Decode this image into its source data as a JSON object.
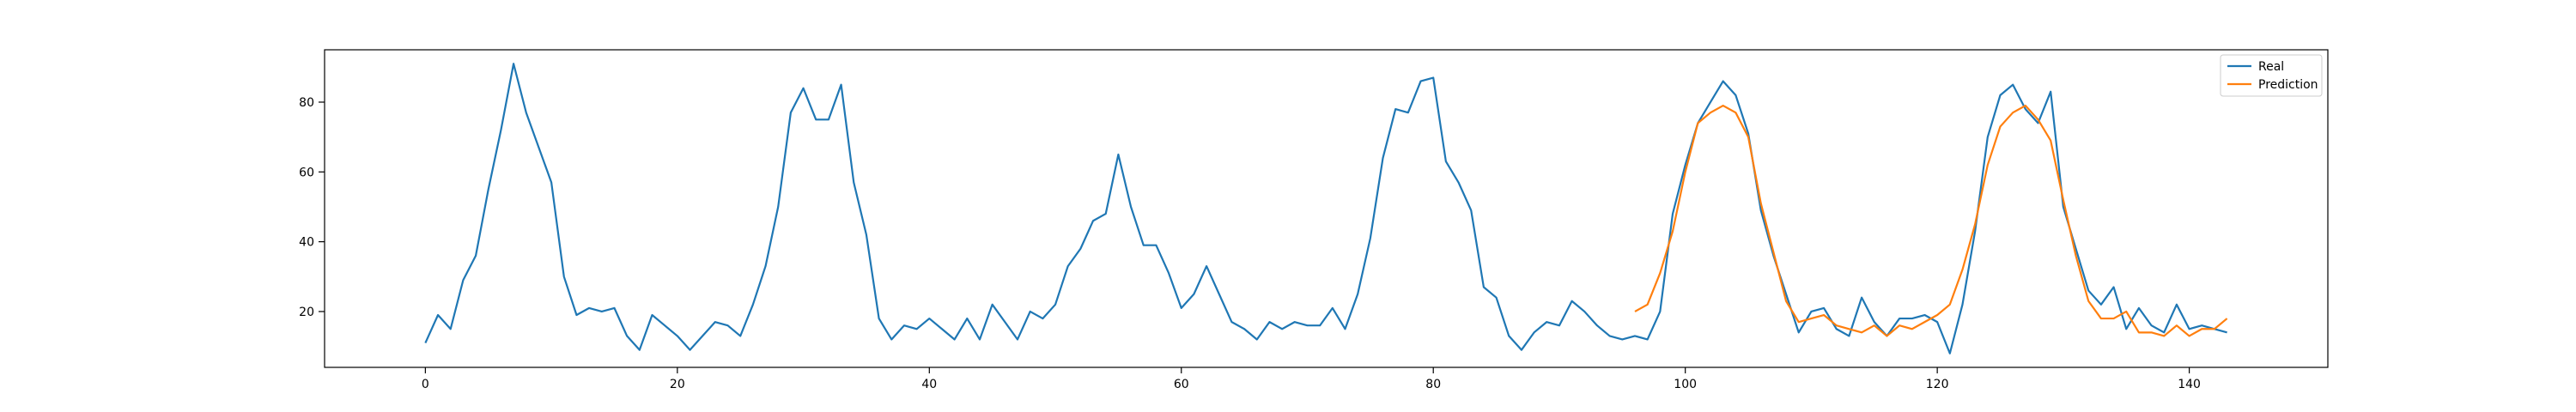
{
  "chart_data": {
    "type": "line",
    "title": "",
    "xlabel": "",
    "ylabel": "",
    "xlim": [
      -8,
      151
    ],
    "ylim": [
      4,
      95
    ],
    "grid": false,
    "legend_position": "top-right",
    "x_ticks": [
      0,
      20,
      40,
      60,
      80,
      100,
      120,
      140
    ],
    "y_ticks": [
      20,
      40,
      60,
      80
    ],
    "series": [
      {
        "name": "Real",
        "color": "#1f77b4",
        "x_start": 0,
        "values": [
          11,
          19,
          15,
          29,
          36,
          55,
          72,
          91,
          77,
          67,
          57,
          30,
          19,
          21,
          20,
          21,
          13,
          9,
          19,
          16,
          13,
          9,
          13,
          17,
          16,
          13,
          22,
          33,
          50,
          77,
          84,
          75,
          75,
          85,
          57,
          42,
          18,
          12,
          16,
          15,
          18,
          15,
          12,
          18,
          12,
          22,
          17,
          12,
          20,
          18,
          22,
          33,
          38,
          46,
          48,
          65,
          50,
          39,
          39,
          31,
          21,
          25,
          33,
          25,
          17,
          15,
          12,
          17,
          15,
          17,
          16,
          16,
          21,
          15,
          25,
          41,
          64,
          78,
          77,
          86,
          87,
          63,
          57,
          49,
          27,
          24,
          13,
          9,
          14,
          17,
          16,
          23,
          20,
          16,
          13,
          12,
          13,
          12,
          20,
          48,
          62,
          74,
          80,
          86,
          82,
          71,
          49,
          36,
          25,
          14,
          20,
          21,
          15,
          13,
          24,
          17,
          13,
          18,
          18,
          19,
          17,
          8,
          22,
          43,
          70,
          82,
          85,
          78,
          74,
          83,
          50,
          38,
          26,
          22,
          27,
          15,
          21,
          16,
          14,
          22,
          15,
          16,
          15,
          14
        ]
      },
      {
        "name": "Prediction",
        "color": "#ff7f0e",
        "x_start": 96,
        "values": [
          20,
          22,
          31,
          43,
          60,
          74,
          77,
          79,
          77,
          70,
          51,
          37,
          23,
          17,
          18,
          19,
          16,
          15,
          14,
          16,
          13,
          16,
          15,
          17,
          19,
          22,
          32,
          45,
          62,
          73,
          77,
          79,
          75,
          69,
          52,
          36,
          23,
          18,
          18,
          20,
          14,
          14,
          13,
          16,
          13,
          15,
          15,
          18
        ]
      }
    ]
  }
}
